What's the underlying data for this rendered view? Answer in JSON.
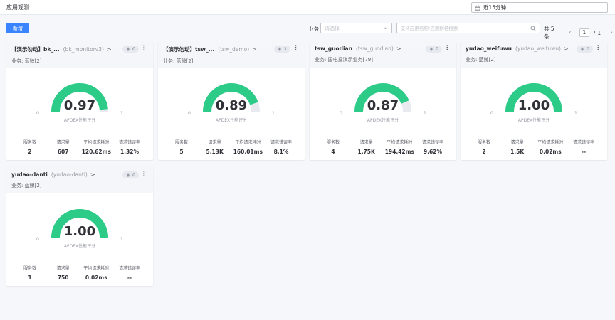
{
  "header": {
    "title": "应用观测",
    "time_range": "近15分钟"
  },
  "toolbar": {
    "add_label": "新增",
    "biz_label": "业务",
    "biz_placeholder": "请选择",
    "search_placeholder": "支持应用名称/应用别名搜索",
    "total_text": "共 5 条",
    "page_current": "1",
    "page_sep": "/",
    "page_total": "1"
  },
  "colors": {
    "accent": "#3a84ff",
    "gauge_green": "#2dcb88",
    "gauge_track": "#e8eaef"
  },
  "cards": [
    {
      "name": "【演示勿动】bk_...",
      "alias": "(bk_monitorv3)",
      "chevron": ">",
      "alarm_count": "0",
      "business": "业务: 蓝鲸[2]",
      "apdex": 0.97,
      "apdex_text": "0.97",
      "min": "0",
      "max": "1",
      "apdex_label": "APDEX性能评分",
      "metrics": [
        {
          "key": "服务数",
          "value": "2"
        },
        {
          "key": "请求量",
          "value": "607"
        },
        {
          "key": "平均请求耗时",
          "value": "120.62ms"
        },
        {
          "key": "请求错误率",
          "value": "1.32%"
        }
      ]
    },
    {
      "name": "【演示勿动】tsw_...",
      "alias": "(tsw_demo)",
      "chevron": ">",
      "alarm_count": "1",
      "business": "业务: 蓝鲸[2]",
      "apdex": 0.89,
      "apdex_text": "0.89",
      "min": "0",
      "max": "1",
      "apdex_label": "APDEX性能评分",
      "metrics": [
        {
          "key": "服务数",
          "value": "5"
        },
        {
          "key": "请求量",
          "value": "5.13K"
        },
        {
          "key": "平均请求耗时",
          "value": "160.01ms"
        },
        {
          "key": "请求错误率",
          "value": "8.1%"
        }
      ]
    },
    {
      "name": "tsw_guodian",
      "alias": "(tsw_guodian)",
      "chevron": ">",
      "alarm_count": "0",
      "business": "业务: 国电投演示业务[79]",
      "apdex": 0.87,
      "apdex_text": "0.87",
      "min": "0",
      "max": "1",
      "apdex_label": "APDEX性能评分",
      "metrics": [
        {
          "key": "服务数",
          "value": "4"
        },
        {
          "key": "请求量",
          "value": "1.75K"
        },
        {
          "key": "平均请求耗时",
          "value": "194.42ms"
        },
        {
          "key": "请求错误率",
          "value": "9.62%"
        }
      ]
    },
    {
      "name": "yudao_weifuwu",
      "alias": "(yudao_weifuwu)",
      "chevron": ">",
      "alarm_count": "0",
      "business": "业务: 蓝鲸[2]",
      "apdex": 1.0,
      "apdex_text": "1.00",
      "min": "0",
      "max": "1",
      "apdex_label": "APDEX性能评分",
      "metrics": [
        {
          "key": "服务数",
          "value": "2"
        },
        {
          "key": "请求量",
          "value": "1.5K"
        },
        {
          "key": "平均请求耗时",
          "value": "0.02ms"
        },
        {
          "key": "请求错误率",
          "value": "--"
        }
      ]
    },
    {
      "name": "yudao-danti",
      "alias": "(yudao-danti)",
      "chevron": ">",
      "alarm_count": "0",
      "business": "业务: 蓝鲸[2]",
      "apdex": 1.0,
      "apdex_text": "1.00",
      "min": "0",
      "max": "1",
      "apdex_label": "APDEX性能评分",
      "metrics": [
        {
          "key": "服务数",
          "value": "1"
        },
        {
          "key": "请求量",
          "value": "750"
        },
        {
          "key": "平均请求耗时",
          "value": "0.02ms"
        },
        {
          "key": "请求错误率",
          "value": "--"
        }
      ]
    }
  ]
}
